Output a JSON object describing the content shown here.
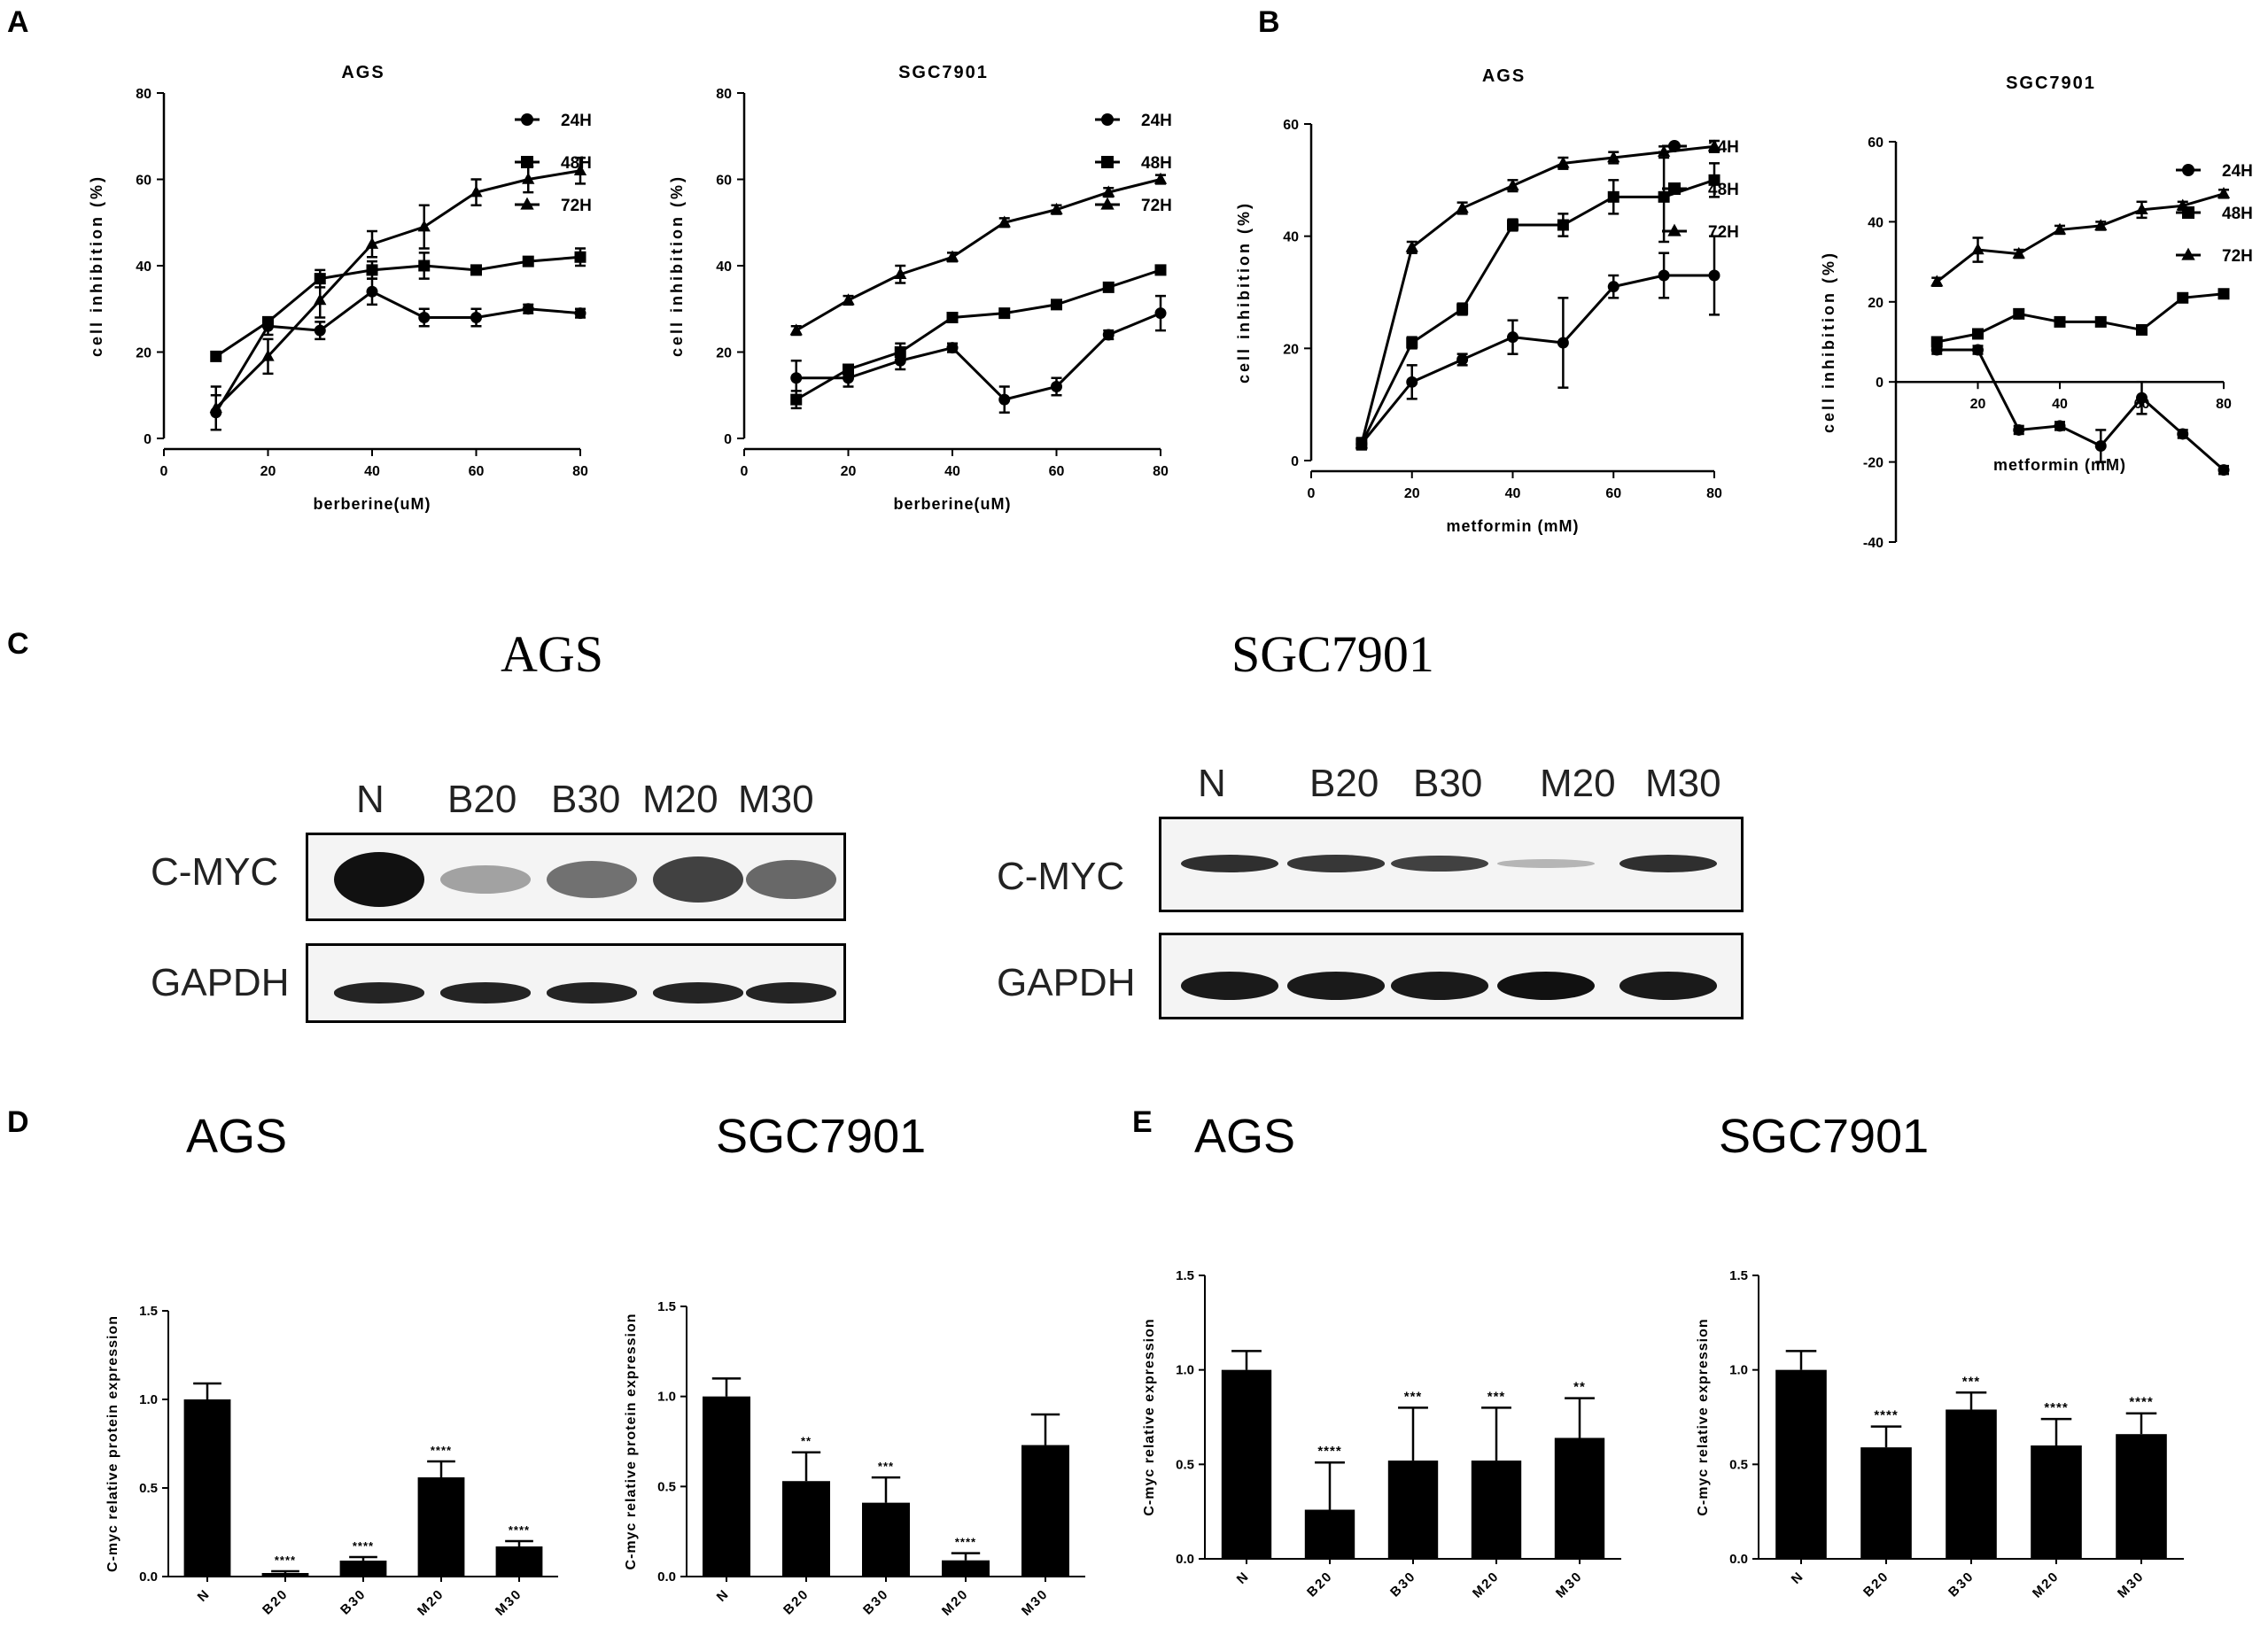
{
  "panel_labels": {
    "a": "A",
    "b": "B",
    "c": "C",
    "d": "D",
    "e": "E"
  },
  "blots": {
    "ags": {
      "title": "AGS",
      "lanes": [
        "N",
        "B20",
        "B30",
        "M20",
        "M30"
      ],
      "rows": [
        "C-MYC",
        "GAPDH"
      ],
      "cmyc_band_intensity": [
        1.0,
        0.25,
        0.5,
        0.75,
        0.55
      ],
      "gapdh_band_intensity": [
        0.9,
        0.9,
        0.9,
        0.9,
        0.9
      ]
    },
    "sgc": {
      "title": "SGC7901",
      "lanes": [
        "N",
        "B20",
        "B30",
        "M20",
        "M30"
      ],
      "rows": [
        "C-MYC",
        "GAPDH"
      ],
      "cmyc_band_intensity": [
        0.85,
        0.8,
        0.75,
        0.15,
        0.85
      ],
      "gapdh_band_intensity": [
        0.95,
        0.95,
        0.95,
        1.0,
        0.95
      ]
    }
  },
  "section_titles": {
    "d_ags": "AGS",
    "d_sgc": "SGC7901",
    "e_ags": "AGS",
    "e_sgc": "SGC7901"
  },
  "chart_data": [
    {
      "id": "A1",
      "type": "line",
      "title": "AGS",
      "xlabel": "berberine(uM)",
      "ylabel": "cell inhibition (%)",
      "xlim": [
        0,
        80
      ],
      "ylim": [
        0,
        80
      ],
      "xticks": [
        0,
        20,
        40,
        60,
        80
      ],
      "yticks": [
        0,
        20,
        40,
        60,
        80
      ],
      "legend_position": "top-right",
      "x": [
        10,
        20,
        30,
        40,
        50,
        60,
        70,
        80
      ],
      "series": [
        {
          "name": "24H",
          "marker": "circle",
          "values": [
            6,
            26,
            25,
            34,
            28,
            28,
            30,
            29
          ],
          "err": [
            4,
            2,
            2,
            3,
            2,
            2,
            1,
            1
          ]
        },
        {
          "name": "48H",
          "marker": "square",
          "values": [
            19,
            27,
            37,
            39,
            40,
            39,
            41,
            42
          ],
          "err": [
            1,
            1,
            2,
            2,
            3,
            1,
            1,
            2
          ]
        },
        {
          "name": "72H",
          "marker": "triangle",
          "values": [
            7,
            19,
            32,
            45,
            49,
            57,
            60,
            62
          ],
          "err": [
            5,
            4,
            4,
            3,
            5,
            3,
            3,
            3
          ]
        }
      ]
    },
    {
      "id": "A2",
      "type": "line",
      "title": "SGC7901",
      "xlabel": "berberine(uM)",
      "ylabel": "cell inhibition (%)",
      "xlim": [
        0,
        80
      ],
      "ylim": [
        0,
        80
      ],
      "xticks": [
        0,
        20,
        40,
        60,
        80
      ],
      "yticks": [
        0,
        20,
        40,
        60,
        80
      ],
      "legend_position": "top-right",
      "x": [
        10,
        20,
        30,
        40,
        50,
        60,
        70,
        80
      ],
      "series": [
        {
          "name": "24H",
          "marker": "circle",
          "values": [
            14,
            14,
            18,
            21,
            9,
            12,
            24,
            29
          ],
          "err": [
            4,
            2,
            2,
            1,
            3,
            2,
            1,
            4
          ]
        },
        {
          "name": "48H",
          "marker": "square",
          "values": [
            9,
            16,
            20,
            28,
            29,
            31,
            35,
            39
          ],
          "err": [
            2,
            1,
            2,
            1,
            1,
            1,
            1,
            1
          ]
        },
        {
          "name": "72H",
          "marker": "triangle",
          "values": [
            25,
            32,
            38,
            42,
            50,
            53,
            57,
            60
          ],
          "err": [
            1,
            1,
            2,
            1,
            1,
            1,
            1,
            1
          ]
        }
      ]
    },
    {
      "id": "B1",
      "type": "line",
      "title": "AGS",
      "xlabel": "metformin (mM)",
      "ylabel": "cell inhibition (%)",
      "xlim": [
        0,
        80
      ],
      "ylim": [
        0,
        60
      ],
      "xticks": [
        0,
        20,
        40,
        60,
        80
      ],
      "yticks": [
        0,
        20,
        40,
        60
      ],
      "legend_position": "top-right",
      "x": [
        10,
        20,
        30,
        40,
        50,
        60,
        70,
        80
      ],
      "series": [
        {
          "name": "24H",
          "marker": "circle",
          "values": [
            3,
            14,
            18,
            22,
            21,
            31,
            33,
            33
          ],
          "err": [
            1,
            3,
            1,
            3,
            8,
            2,
            4,
            7
          ]
        },
        {
          "name": "48H",
          "marker": "square",
          "values": [
            3,
            21,
            27,
            42,
            42,
            47,
            47,
            50
          ],
          "err": [
            1,
            1,
            1,
            1,
            2,
            3,
            8,
            3
          ]
        },
        {
          "name": "72H",
          "marker": "triangle",
          "values": [
            3,
            38,
            45,
            49,
            53,
            54,
            55,
            56
          ],
          "err": [
            1,
            1,
            1,
            1,
            1,
            1,
            1,
            1
          ]
        }
      ]
    },
    {
      "id": "B2",
      "type": "line",
      "title": "SGC7901",
      "xlabel": "metformin (mM)",
      "ylabel": "cell inhibition (%)",
      "xlim": [
        0,
        80
      ],
      "ylim": [
        -40,
        60
      ],
      "xticks": [
        20,
        40,
        60,
        80
      ],
      "yticks": [
        -40,
        -20,
        0,
        20,
        40,
        60
      ],
      "legend_position": "top-right",
      "x": [
        10,
        20,
        30,
        40,
        50,
        60,
        70,
        80
      ],
      "series": [
        {
          "name": "24H",
          "marker": "circle",
          "values": [
            8,
            8,
            -12,
            -11,
            -16,
            -4,
            -13,
            -22
          ],
          "err": [
            1,
            1,
            1,
            1,
            4,
            4,
            1,
            1
          ]
        },
        {
          "name": "48H",
          "marker": "square",
          "values": [
            10,
            12,
            17,
            15,
            15,
            13,
            21,
            22
          ],
          "err": [
            1,
            1,
            1,
            1,
            1,
            1,
            1,
            1
          ]
        },
        {
          "name": "72H",
          "marker": "triangle",
          "values": [
            25,
            33,
            32,
            38,
            39,
            43,
            44,
            47
          ],
          "err": [
            1,
            3,
            1,
            1,
            1,
            2,
            1,
            1
          ]
        }
      ]
    },
    {
      "id": "D1",
      "type": "bar",
      "ylabel": "C-myc relative protein expression",
      "categories": [
        "N",
        "B20",
        "B30",
        "M20",
        "M30"
      ],
      "values": [
        1.0,
        0.02,
        0.09,
        0.56,
        0.17
      ],
      "err": [
        0.09,
        0.01,
        0.02,
        0.09,
        0.03
      ],
      "significance": [
        "",
        "****",
        "****",
        "****",
        "****"
      ],
      "ylim": [
        0,
        1.5
      ],
      "yticks": [
        "0.0",
        "0.5",
        "1.0",
        "1.5"
      ]
    },
    {
      "id": "D2",
      "type": "bar",
      "ylabel": "C-myc relative protein expression",
      "categories": [
        "N",
        "B20",
        "B30",
        "M20",
        "M30"
      ],
      "values": [
        1.0,
        0.53,
        0.41,
        0.09,
        0.73
      ],
      "err": [
        0.1,
        0.16,
        0.14,
        0.04,
        0.17
      ],
      "significance": [
        "",
        "**",
        "***",
        "****",
        ""
      ],
      "ylim": [
        0,
        1.5
      ],
      "yticks": [
        "0.0",
        "0.5",
        "1.0",
        "1.5"
      ]
    },
    {
      "id": "E1",
      "type": "bar",
      "ylabel": "C-myc relative expression",
      "categories": [
        "N",
        "B20",
        "B30",
        "M20",
        "M30"
      ],
      "values": [
        1.0,
        0.26,
        0.52,
        0.52,
        0.64
      ],
      "err": [
        0.1,
        0.25,
        0.28,
        0.28,
        0.21
      ],
      "significance": [
        "",
        "****",
        "***",
        "***",
        "**"
      ],
      "ylim": [
        0,
        1.5
      ],
      "yticks": [
        "0.0",
        "0.5",
        "1.0",
        "1.5"
      ]
    },
    {
      "id": "E2",
      "type": "bar",
      "ylabel": "C-myc relative expression",
      "categories": [
        "N",
        "B20",
        "B30",
        "M20",
        "M30"
      ],
      "values": [
        1.0,
        0.59,
        0.79,
        0.6,
        0.66
      ],
      "err": [
        0.1,
        0.11,
        0.09,
        0.14,
        0.11
      ],
      "significance": [
        "",
        "****",
        "***",
        "****",
        "****"
      ],
      "ylim": [
        0,
        1.5
      ],
      "yticks": [
        "0.0",
        "0.5",
        "1.0",
        "1.5"
      ]
    }
  ]
}
